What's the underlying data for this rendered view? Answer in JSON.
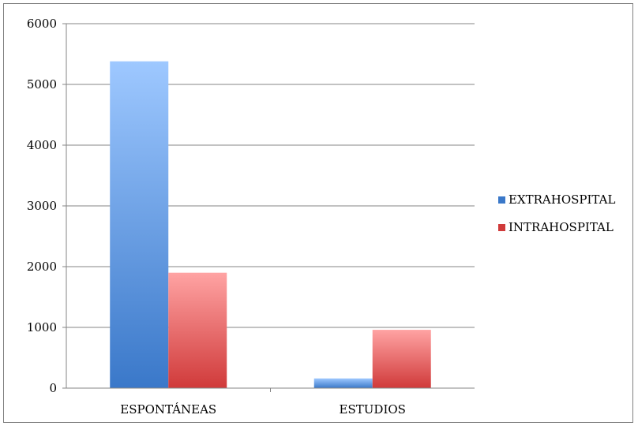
{
  "chart_data": {
    "type": "bar",
    "title": "",
    "xlabel": "",
    "ylabel": "",
    "categories": [
      "ESPONTÁNEAS",
      "ESTUDIOS"
    ],
    "series": [
      {
        "name": "EXTRAHOSPITAL",
        "values": [
          5380,
          160
        ],
        "color_top": "#9ec8ff",
        "color_bottom": "#3a78c9"
      },
      {
        "name": "INTRAHOSPITAL",
        "values": [
          1900,
          960
        ],
        "color_top": "#ffa3a3",
        "color_bottom": "#d03a3a"
      }
    ],
    "ylim": [
      0,
      6000
    ],
    "yticks": [
      "0",
      "1000",
      "2000",
      "3000",
      "4000",
      "5000",
      "6000"
    ],
    "grid": true,
    "legend_position": "right"
  }
}
